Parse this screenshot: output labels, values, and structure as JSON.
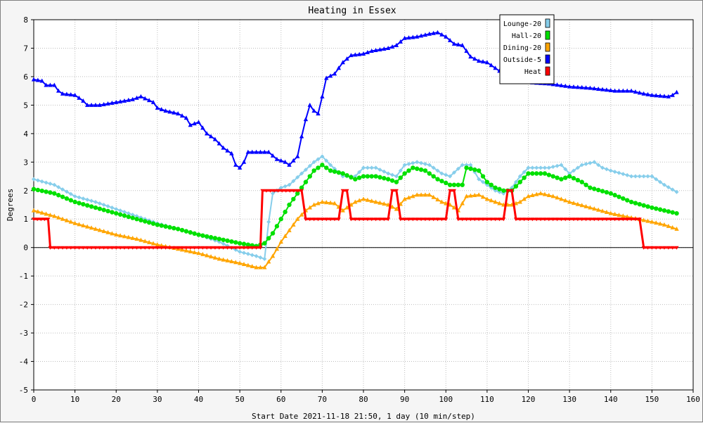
{
  "chart_data": {
    "type": "line",
    "title": "Heating in Essex",
    "xlabel": "Start Date 2021-11-18 21:50, 1 day (10 min/step)",
    "ylabel": "Degrees",
    "xlim": [
      0,
      160
    ],
    "ylim": [
      -5,
      8
    ],
    "x_ticks": [
      0,
      10,
      20,
      30,
      40,
      50,
      60,
      70,
      80,
      90,
      100,
      110,
      120,
      130,
      140,
      150,
      160
    ],
    "y_ticks": [
      -5,
      -4,
      -3,
      -2,
      -1,
      0,
      1,
      2,
      3,
      4,
      5,
      6,
      7,
      8
    ],
    "grid": true,
    "legend_position": "top-right",
    "series": [
      {
        "name": "Lounge-20",
        "color": "#87ceeb",
        "marker": "diamond",
        "points": [
          [
            0,
            2.4
          ],
          [
            5,
            2.2
          ],
          [
            10,
            1.8
          ],
          [
            15,
            1.6
          ],
          [
            20,
            1.35
          ],
          [
            25,
            1.1
          ],
          [
            30,
            0.85
          ],
          [
            35,
            0.65
          ],
          [
            40,
            0.45
          ],
          [
            45,
            0.2
          ],
          [
            50,
            -0.15
          ],
          [
            54,
            -0.3
          ],
          [
            56,
            -0.4
          ],
          [
            57,
            0.9
          ],
          [
            58,
            1.9
          ],
          [
            60,
            2.1
          ],
          [
            62,
            2.2
          ],
          [
            65,
            2.6
          ],
          [
            68,
            3.0
          ],
          [
            70,
            3.2
          ],
          [
            72,
            2.9
          ],
          [
            75,
            2.5
          ],
          [
            78,
            2.5
          ],
          [
            80,
            2.8
          ],
          [
            83,
            2.8
          ],
          [
            86,
            2.6
          ],
          [
            88,
            2.5
          ],
          [
            90,
            2.9
          ],
          [
            93,
            3.0
          ],
          [
            96,
            2.9
          ],
          [
            99,
            2.6
          ],
          [
            101,
            2.5
          ],
          [
            104,
            2.9
          ],
          [
            106,
            2.9
          ],
          [
            108,
            2.4
          ],
          [
            110,
            2.2
          ],
          [
            112,
            2.0
          ],
          [
            114,
            1.9
          ],
          [
            116,
            2.1
          ],
          [
            118,
            2.5
          ],
          [
            120,
            2.8
          ],
          [
            125,
            2.8
          ],
          [
            128,
            2.9
          ],
          [
            130,
            2.6
          ],
          [
            133,
            2.9
          ],
          [
            136,
            3.0
          ],
          [
            138,
            2.8
          ],
          [
            140,
            2.7
          ],
          [
            145,
            2.5
          ],
          [
            150,
            2.5
          ],
          [
            153,
            2.2
          ],
          [
            156,
            1.95
          ]
        ]
      },
      {
        "name": "Hall-20",
        "color": "#00e000",
        "marker": "circle",
        "points": [
          [
            0,
            2.05
          ],
          [
            5,
            1.9
          ],
          [
            10,
            1.6
          ],
          [
            15,
            1.4
          ],
          [
            20,
            1.2
          ],
          [
            25,
            1.0
          ],
          [
            30,
            0.8
          ],
          [
            35,
            0.65
          ],
          [
            40,
            0.45
          ],
          [
            45,
            0.3
          ],
          [
            50,
            0.15
          ],
          [
            54,
            0.05
          ],
          [
            56,
            0.15
          ],
          [
            58,
            0.5
          ],
          [
            60,
            1.0
          ],
          [
            62,
            1.5
          ],
          [
            64,
            1.9
          ],
          [
            66,
            2.3
          ],
          [
            68,
            2.7
          ],
          [
            70,
            2.9
          ],
          [
            72,
            2.7
          ],
          [
            75,
            2.6
          ],
          [
            78,
            2.4
          ],
          [
            80,
            2.5
          ],
          [
            83,
            2.5
          ],
          [
            86,
            2.4
          ],
          [
            88,
            2.3
          ],
          [
            90,
            2.6
          ],
          [
            92,
            2.8
          ],
          [
            95,
            2.7
          ],
          [
            98,
            2.4
          ],
          [
            101,
            2.2
          ],
          [
            104,
            2.2
          ],
          [
            105,
            2.8
          ],
          [
            108,
            2.7
          ],
          [
            110,
            2.3
          ],
          [
            112,
            2.1
          ],
          [
            114,
            2.0
          ],
          [
            116,
            2.0
          ],
          [
            118,
            2.3
          ],
          [
            120,
            2.6
          ],
          [
            124,
            2.6
          ],
          [
            128,
            2.4
          ],
          [
            130,
            2.5
          ],
          [
            133,
            2.3
          ],
          [
            135,
            2.1
          ],
          [
            140,
            1.9
          ],
          [
            145,
            1.6
          ],
          [
            150,
            1.4
          ],
          [
            153,
            1.3
          ],
          [
            156,
            1.2
          ]
        ]
      },
      {
        "name": "Dining-20",
        "color": "#ffa500",
        "marker": "triangle",
        "points": [
          [
            0,
            1.3
          ],
          [
            5,
            1.1
          ],
          [
            10,
            0.85
          ],
          [
            15,
            0.65
          ],
          [
            20,
            0.45
          ],
          [
            25,
            0.3
          ],
          [
            30,
            0.1
          ],
          [
            35,
            -0.05
          ],
          [
            40,
            -0.2
          ],
          [
            45,
            -0.4
          ],
          [
            50,
            -0.55
          ],
          [
            54,
            -0.7
          ],
          [
            56,
            -0.7
          ],
          [
            58,
            -0.3
          ],
          [
            60,
            0.2
          ],
          [
            62,
            0.6
          ],
          [
            64,
            1.0
          ],
          [
            66,
            1.3
          ],
          [
            68,
            1.5
          ],
          [
            70,
            1.6
          ],
          [
            73,
            1.55
          ],
          [
            75,
            1.3
          ],
          [
            78,
            1.6
          ],
          [
            80,
            1.7
          ],
          [
            83,
            1.6
          ],
          [
            86,
            1.5
          ],
          [
            88,
            1.35
          ],
          [
            90,
            1.7
          ],
          [
            93,
            1.85
          ],
          [
            96,
            1.85
          ],
          [
            99,
            1.6
          ],
          [
            101,
            1.5
          ],
          [
            103,
            1.3
          ],
          [
            105,
            1.8
          ],
          [
            108,
            1.85
          ],
          [
            110,
            1.7
          ],
          [
            112,
            1.6
          ],
          [
            114,
            1.5
          ],
          [
            116,
            1.5
          ],
          [
            118,
            1.6
          ],
          [
            120,
            1.8
          ],
          [
            123,
            1.9
          ],
          [
            126,
            1.8
          ],
          [
            130,
            1.6
          ],
          [
            135,
            1.4
          ],
          [
            140,
            1.2
          ],
          [
            145,
            1.05
          ],
          [
            150,
            0.9
          ],
          [
            153,
            0.8
          ],
          [
            156,
            0.65
          ]
        ]
      },
      {
        "name": "Outside-5",
        "color": "#0000ff",
        "marker": "triangle",
        "points": [
          [
            0,
            5.9
          ],
          [
            2,
            5.85
          ],
          [
            3,
            5.7
          ],
          [
            5,
            5.7
          ],
          [
            6,
            5.5
          ],
          [
            7,
            5.4
          ],
          [
            10,
            5.35
          ],
          [
            12,
            5.15
          ],
          [
            13,
            5.0
          ],
          [
            16,
            5.0
          ],
          [
            18,
            5.05
          ],
          [
            20,
            5.1
          ],
          [
            24,
            5.2
          ],
          [
            26,
            5.3
          ],
          [
            29,
            5.1
          ],
          [
            30,
            4.9
          ],
          [
            32,
            4.8
          ],
          [
            35,
            4.7
          ],
          [
            37,
            4.55
          ],
          [
            38,
            4.3
          ],
          [
            40,
            4.4
          ],
          [
            42,
            4.0
          ],
          [
            44,
            3.8
          ],
          [
            46,
            3.5
          ],
          [
            48,
            3.3
          ],
          [
            49,
            2.9
          ],
          [
            50,
            2.8
          ],
          [
            51,
            3.0
          ],
          [
            52,
            3.35
          ],
          [
            55,
            3.35
          ],
          [
            57,
            3.35
          ],
          [
            59,
            3.1
          ],
          [
            61,
            3.0
          ],
          [
            62,
            2.9
          ],
          [
            64,
            3.2
          ],
          [
            65,
            3.9
          ],
          [
            66,
            4.5
          ],
          [
            67,
            5.0
          ],
          [
            68,
            4.8
          ],
          [
            69,
            4.7
          ],
          [
            70,
            5.3
          ],
          [
            71,
            5.95
          ],
          [
            73,
            6.1
          ],
          [
            75,
            6.5
          ],
          [
            77,
            6.75
          ],
          [
            80,
            6.8
          ],
          [
            82,
            6.9
          ],
          [
            86,
            7.0
          ],
          [
            88,
            7.1
          ],
          [
            90,
            7.35
          ],
          [
            93,
            7.4
          ],
          [
            96,
            7.5
          ],
          [
            98,
            7.55
          ],
          [
            100,
            7.4
          ],
          [
            102,
            7.15
          ],
          [
            104,
            7.1
          ],
          [
            106,
            6.7
          ],
          [
            108,
            6.55
          ],
          [
            110,
            6.5
          ],
          [
            112,
            6.3
          ],
          [
            114,
            6.1
          ],
          [
            116,
            5.95
          ],
          [
            120,
            5.8
          ],
          [
            125,
            5.75
          ],
          [
            130,
            5.65
          ],
          [
            135,
            5.6
          ],
          [
            138,
            5.55
          ],
          [
            141,
            5.5
          ],
          [
            145,
            5.5
          ],
          [
            148,
            5.4
          ],
          [
            150,
            5.35
          ],
          [
            154,
            5.3
          ],
          [
            155,
            5.35
          ],
          [
            156,
            5.45
          ]
        ]
      },
      {
        "name": "Heat",
        "color": "#ff0000",
        "marker": "triangle-down",
        "points": [
          [
            0,
            1
          ],
          [
            3.5,
            1
          ],
          [
            4,
            0
          ],
          [
            55,
            0
          ],
          [
            55.5,
            2
          ],
          [
            65,
            2
          ],
          [
            66,
            1
          ],
          [
            74,
            1
          ],
          [
            75,
            2
          ],
          [
            76,
            2
          ],
          [
            77,
            1
          ],
          [
            86,
            1
          ],
          [
            87,
            2
          ],
          [
            88,
            2
          ],
          [
            89,
            1
          ],
          [
            100,
            1
          ],
          [
            101,
            2
          ],
          [
            102,
            2
          ],
          [
            103,
            1
          ],
          [
            114,
            1
          ],
          [
            115,
            2
          ],
          [
            116,
            2
          ],
          [
            117,
            1
          ],
          [
            147,
            1
          ],
          [
            148,
            0
          ],
          [
            156,
            0
          ]
        ]
      }
    ]
  }
}
